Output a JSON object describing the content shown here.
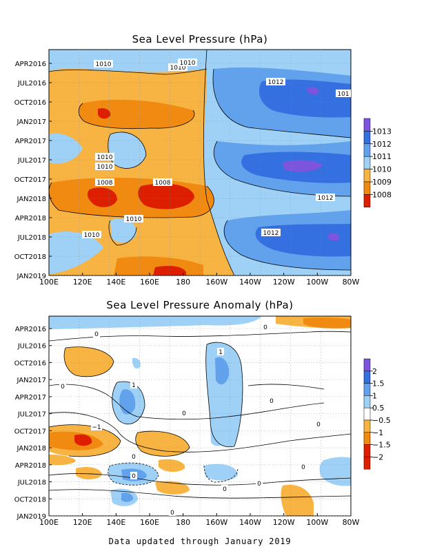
{
  "footer": "Data updated through January 2019",
  "colors": {
    "orange_dark": "#dd1f00",
    "orange_mid": "#f08a10",
    "orange_light": "#f8b443",
    "blue_light": "#9fd0f6",
    "blue_mid": "#62a2ec",
    "blue_dark": "#3470e0",
    "purple": "#7c55dc"
  },
  "chart_data": [
    {
      "type": "heatmap",
      "title": "Sea Level Pressure (hPa)",
      "x_ticks": [
        "100E",
        "120E",
        "140E",
        "160E",
        "180",
        "160W",
        "140W",
        "120W",
        "100W",
        "80W"
      ],
      "y_ticks": [
        "APR2016",
        "JUL2016",
        "OCT2016",
        "JAN2017",
        "APR2017",
        "JUL2017",
        "OCT2017",
        "JAN2018",
        "APR2018",
        "JUL2018",
        "OCT2018",
        "JAN2019"
      ],
      "legend_levels": [
        "1013",
        "1012",
        "1011",
        "1010",
        "1009",
        "1008"
      ],
      "contour_labels": [
        "1010",
        "1010",
        "1010",
        "1012",
        "101",
        "1010",
        "1010",
        "1008",
        "1008",
        "1010",
        "1010",
        "1012",
        "1012"
      ]
    },
    {
      "type": "heatmap",
      "title": "Sea Level Pressure Anomaly (hPa)",
      "x_ticks": [
        "100E",
        "120E",
        "140E",
        "160E",
        "180",
        "160W",
        "140W",
        "120W",
        "100W",
        "80W"
      ],
      "y_ticks": [
        "APR2016",
        "JUL2016",
        "OCT2016",
        "JAN2017",
        "APR2017",
        "JUL2017",
        "OCT2017",
        "JAN2018",
        "APR2018",
        "JUL2018",
        "OCT2018",
        "JAN2019"
      ],
      "legend_levels": [
        "2",
        "1.5",
        "1",
        "0.5",
        "−0.5",
        "−1",
        "−1.5",
        "−2"
      ],
      "contour_labels": [
        "0",
        "0",
        "1",
        "0",
        "1",
        "0",
        "0",
        "0",
        "0",
        "0",
        "−1",
        "0",
        "0",
        "0",
        "0"
      ]
    }
  ]
}
